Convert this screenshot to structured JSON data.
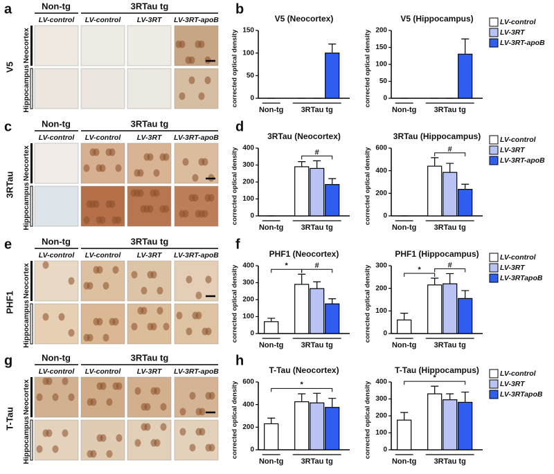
{
  "figure": {
    "rows": [
      {
        "letter": "a",
        "marker": "V5",
        "groups": [
          "Non-tg",
          "3RTau tg"
        ],
        "columns": [
          "LV-control",
          "LV-control",
          "LV-3RT",
          "LV-3RT-apoB"
        ],
        "regions": [
          "Neocortex",
          "Hippocampus"
        ]
      },
      {
        "letter": "c",
        "marker": "3RTau",
        "groups": [
          "Non-tg",
          "3RTau tg"
        ],
        "columns": [
          "LV-control",
          "LV-control",
          "LV-3RT",
          "LV-3RT-apoB"
        ],
        "regions": [
          "Neocortex",
          "Hippocampus"
        ]
      },
      {
        "letter": "e",
        "marker": "PHF1",
        "groups": [
          "Non-tg",
          "3RTau tg"
        ],
        "columns": [
          "LV-control",
          "LV-control",
          "LV-3RT",
          "LV-3RT-apoB"
        ],
        "regions": [
          "Neocortex",
          "Hippocampus"
        ]
      },
      {
        "letter": "g",
        "marker": "T-Tau",
        "groups": [
          "Non-tg",
          "3RTau tg"
        ],
        "columns": [
          "LV-control",
          "LV-control",
          "LV-3RT",
          "LV-3RT-apoB"
        ],
        "regions": [
          "Neocortex",
          "Hippocampus"
        ]
      }
    ]
  },
  "chart_data": [
    {
      "type": "bar",
      "panel_letter": "b",
      "title": "V5 (Neocortex)",
      "ylabel": "corrected optical density",
      "categories": [
        "Non-tg",
        "3RTau tg"
      ],
      "series": [
        {
          "color": "#ffffff",
          "values": [
            0,
            0
          ],
          "errors": [
            0,
            0
          ]
        },
        {
          "color": "#b9c3f3",
          "values": [
            null,
            0
          ],
          "errors": [
            null,
            0
          ]
        },
        {
          "color": "#2f5ff0",
          "values": [
            null,
            100
          ],
          "errors": [
            null,
            20
          ]
        }
      ],
      "ylim": [
        0,
        150
      ],
      "yticks": [
        0,
        50,
        100,
        150
      ],
      "annotations": []
    },
    {
      "type": "bar",
      "title": "V5 (Hippocampus)",
      "ylabel": "corrected optical density",
      "categories": [
        "Non-tg",
        "3RTau tg"
      ],
      "series": [
        {
          "name": "LV-control",
          "color": "#ffffff",
          "values": [
            0,
            0
          ],
          "errors": [
            0,
            0
          ]
        },
        {
          "name": "LV-3RT",
          "color": "#b9c3f3",
          "values": [
            null,
            0
          ],
          "errors": [
            null,
            0
          ]
        },
        {
          "name": "LV-3RT-apoB",
          "color": "#2f5ff0",
          "values": [
            null,
            130
          ],
          "errors": [
            null,
            45
          ]
        }
      ],
      "ylim": [
        0,
        200
      ],
      "yticks": [
        0,
        50,
        100,
        150,
        200
      ],
      "annotations": [],
      "legend": true
    },
    {
      "type": "bar",
      "panel_letter": "d",
      "title": "3RTau (Neocortex)",
      "ylabel": "corrected optical density",
      "categories": [
        "Non-tg",
        "3RTau tg"
      ],
      "series": [
        {
          "color": "#ffffff",
          "values": [
            0,
            290
          ],
          "errors": [
            0,
            30
          ]
        },
        {
          "color": "#b9c3f3",
          "values": [
            null,
            280
          ],
          "errors": [
            null,
            45
          ]
        },
        {
          "color": "#2f5ff0",
          "values": [
            null,
            185
          ],
          "errors": [
            null,
            35
          ]
        }
      ],
      "ylim": [
        0,
        400
      ],
      "yticks": [
        0,
        100,
        200,
        300,
        400
      ],
      "annotations": [
        "#"
      ]
    },
    {
      "type": "bar",
      "title": "3RTau (Hippocampus)",
      "ylabel": "corrected optical density",
      "categories": [
        "Non-tg",
        "3RTau tg"
      ],
      "series": [
        {
          "name": "LV-control",
          "color": "#ffffff",
          "values": [
            0,
            440
          ],
          "errors": [
            0,
            75
          ]
        },
        {
          "name": "LV-3RT",
          "color": "#b9c3f3",
          "values": [
            null,
            385
          ],
          "errors": [
            null,
            80
          ]
        },
        {
          "name": "LV-3RT-apoB",
          "color": "#2f5ff0",
          "values": [
            null,
            235
          ],
          "errors": [
            null,
            45
          ]
        }
      ],
      "ylim": [
        0,
        600
      ],
      "yticks": [
        0,
        200,
        400,
        600
      ],
      "annotations": [
        "#"
      ],
      "legend": true
    },
    {
      "type": "bar",
      "panel_letter": "f",
      "title": "PHF1 (Neocortex)",
      "ylabel": "corrected optical density",
      "categories": [
        "Non-tg",
        "3RTau tg"
      ],
      "series": [
        {
          "color": "#ffffff",
          "values": [
            70,
            290
          ],
          "errors": [
            20,
            60
          ]
        },
        {
          "color": "#b9c3f3",
          "values": [
            null,
            265
          ],
          "errors": [
            null,
            40
          ]
        },
        {
          "color": "#2f5ff0",
          "values": [
            null,
            175
          ],
          "errors": [
            null,
            30
          ]
        }
      ],
      "ylim": [
        0,
        400
      ],
      "yticks": [
        0,
        100,
        200,
        300,
        400
      ],
      "annotations": [
        "*",
        "#"
      ]
    },
    {
      "type": "bar",
      "title": "PHF1 (Hippocampus)",
      "ylabel": "corrected optical density",
      "categories": [
        "Non-tg",
        "3RTau tg"
      ],
      "series": [
        {
          "name": "LV-control",
          "color": "#ffffff",
          "values": [
            60,
            215
          ],
          "errors": [
            30,
            30
          ]
        },
        {
          "name": "LV-3RT",
          "color": "#b9c3f3",
          "values": [
            null,
            220
          ],
          "errors": [
            null,
            45
          ]
        },
        {
          "name": "LV-3RTapoB",
          "color": "#2f5ff0",
          "values": [
            null,
            155
          ],
          "errors": [
            null,
            35
          ]
        }
      ],
      "ylim": [
        0,
        300
      ],
      "yticks": [
        0,
        100,
        200,
        300
      ],
      "annotations": [
        "*",
        "#"
      ],
      "legend": true
    },
    {
      "type": "bar",
      "panel_letter": "h",
      "title": "T-Tau (Neocortex)",
      "ylabel": "corrected optical density",
      "categories": [
        "Non-tg",
        "3RTau tg"
      ],
      "series": [
        {
          "color": "#ffffff",
          "values": [
            230,
            425
          ],
          "errors": [
            50,
            70
          ]
        },
        {
          "color": "#b9c3f3",
          "values": [
            null,
            415
          ],
          "errors": [
            null,
            85
          ]
        },
        {
          "color": "#2f5ff0",
          "values": [
            null,
            375
          ],
          "errors": [
            null,
            80
          ]
        }
      ],
      "ylim": [
        0,
        600
      ],
      "yticks": [
        0,
        200,
        400,
        600
      ],
      "annotations": [
        "*"
      ]
    },
    {
      "type": "bar",
      "title": "T-Tau (Hippocampus)",
      "ylabel": "corrected optical density",
      "categories": [
        "Non-tg",
        "3RTau tg"
      ],
      "series": [
        {
          "name": "LV-control",
          "color": "#ffffff",
          "values": [
            175,
            330
          ],
          "errors": [
            45,
            45
          ]
        },
        {
          "name": "LV-3RT",
          "color": "#b9c3f3",
          "values": [
            null,
            295
          ],
          "errors": [
            null,
            35
          ]
        },
        {
          "name": "LV-3RTapoB",
          "color": "#2f5ff0",
          "values": [
            null,
            280
          ],
          "errors": [
            null,
            60
          ]
        }
      ],
      "ylim": [
        0,
        400
      ],
      "yticks": [
        0,
        100,
        200,
        300,
        400
      ],
      "annotations": [
        "*"
      ],
      "legend": true
    }
  ]
}
